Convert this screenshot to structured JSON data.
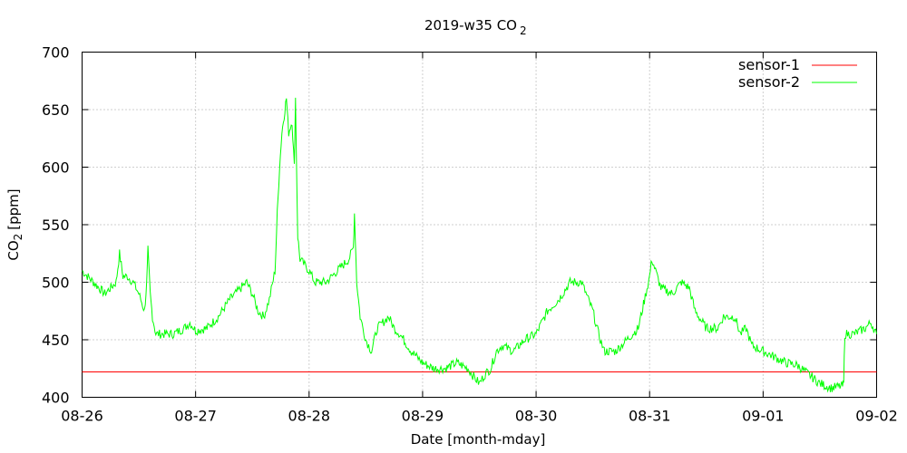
{
  "chart_data": {
    "type": "line",
    "title": "2019-w35 CO",
    "title_sub": "2",
    "xlabel": "Date [month-mday]",
    "ylabel": "CO",
    "ylabel_sub": "2",
    "ylabel_unit": "[ppm]",
    "xlim": [
      0,
      7
    ],
    "ylim": [
      400,
      700
    ],
    "xticks": [
      "08-26",
      "08-27",
      "08-28",
      "08-29",
      "08-30",
      "08-31",
      "09-01",
      "09-02"
    ],
    "yticks": [
      400,
      450,
      500,
      550,
      600,
      650,
      700
    ],
    "grid": true,
    "legend_position": "top-right",
    "series": [
      {
        "name": "sensor-1",
        "color": "#ff0000",
        "x": [
          0,
          7
        ],
        "y": [
          422,
          422
        ]
      },
      {
        "name": "sensor-2",
        "color": "#00ff00",
        "x": [
          0,
          0.1,
          0.2,
          0.3,
          0.33,
          0.36,
          0.4,
          0.45,
          0.5,
          0.55,
          0.57,
          0.58,
          0.6,
          0.62,
          0.65,
          0.8,
          0.9,
          0.95,
          1.0,
          1.1,
          1.2,
          1.3,
          1.4,
          1.45,
          1.5,
          1.55,
          1.6,
          1.65,
          1.7,
          1.72,
          1.74,
          1.76,
          1.78,
          1.8,
          1.82,
          1.85,
          1.87,
          1.88,
          1.9,
          1.92,
          2.0,
          2.05,
          2.15,
          2.25,
          2.35,
          2.39,
          2.4,
          2.42,
          2.45,
          2.5,
          2.55,
          2.6,
          2.65,
          2.7,
          2.75,
          2.8,
          2.9,
          3.0,
          3.1,
          3.2,
          3.3,
          3.4,
          3.45,
          3.5,
          3.55,
          3.6,
          3.65,
          3.7,
          3.8,
          3.9,
          4.0,
          4.1,
          4.2,
          4.3,
          4.4,
          4.5,
          4.55,
          4.6,
          4.7,
          4.8,
          4.9,
          5.0,
          5.02,
          5.1,
          5.2,
          5.28,
          5.35,
          5.4,
          5.5,
          5.6,
          5.65,
          5.75,
          5.8,
          5.85,
          5.9,
          6.0,
          6.1,
          6.2,
          6.3,
          6.4,
          6.5,
          6.6,
          6.7,
          6.71,
          6.72,
          6.8,
          6.9,
          6.95,
          7.0
        ],
        "y": [
          510,
          500,
          490,
          500,
          525,
          505,
          505,
          500,
          490,
          475,
          500,
          528,
          490,
          470,
          455,
          455,
          460,
          465,
          458,
          460,
          470,
          485,
          495,
          500,
          490,
          475,
          470,
          485,
          510,
          560,
          600,
          630,
          645,
          660,
          630,
          640,
          600,
          660,
          540,
          520,
          510,
          500,
          500,
          510,
          520,
          530,
          560,
          500,
          470,
          450,
          440,
          460,
          465,
          470,
          460,
          455,
          440,
          430,
          425,
          425,
          430,
          425,
          418,
          412,
          420,
          425,
          440,
          445,
          440,
          450,
          455,
          475,
          485,
          500,
          500,
          475,
          455,
          440,
          440,
          450,
          460,
          505,
          520,
          495,
          490,
          500,
          495,
          475,
          460,
          460,
          470,
          470,
          455,
          460,
          445,
          440,
          435,
          430,
          428,
          420,
          412,
          408,
          410,
          412,
          455,
          455,
          460,
          465,
          455
        ]
      }
    ]
  }
}
